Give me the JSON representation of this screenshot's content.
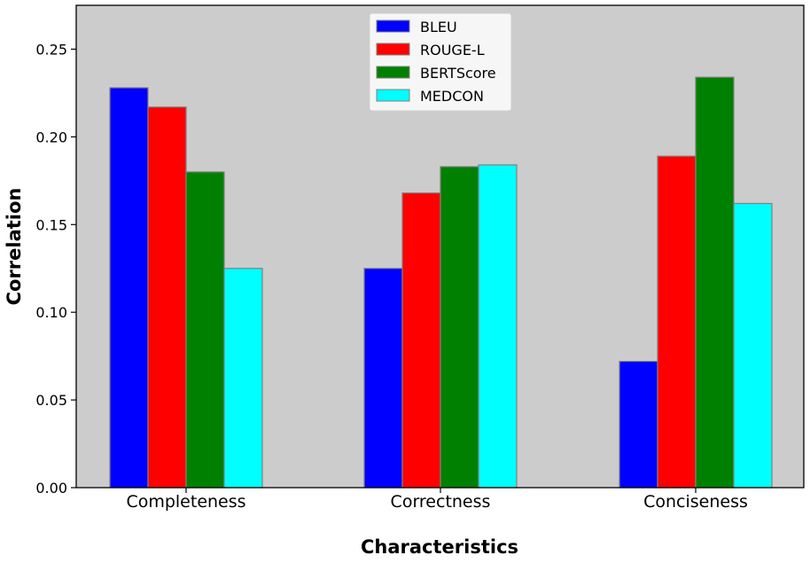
{
  "chart_data": {
    "type": "bar",
    "title": "",
    "xlabel": "Characteristics",
    "ylabel": "Correlation",
    "ylim": [
      0,
      0.275
    ],
    "yticks": [
      "0.00",
      "0.05",
      "0.10",
      "0.15",
      "0.20",
      "0.25"
    ],
    "categories": [
      "Completeness",
      "Correctness",
      "Conciseness"
    ],
    "series": [
      {
        "name": "BLEU",
        "color": "#0000ff",
        "values": [
          0.228,
          0.125,
          0.072
        ]
      },
      {
        "name": "ROUGE-L",
        "color": "#ff0000",
        "values": [
          0.217,
          0.168,
          0.189
        ]
      },
      {
        "name": "BERTScore",
        "color": "#008000",
        "values": [
          0.18,
          0.183,
          0.234
        ]
      },
      {
        "name": "MEDCON",
        "color": "#00ffff",
        "values": [
          0.125,
          0.184,
          0.162
        ]
      }
    ],
    "legend_position": "top-center",
    "background_color": "#cccccc",
    "bar_edge_color": "#808080",
    "grid": false
  }
}
